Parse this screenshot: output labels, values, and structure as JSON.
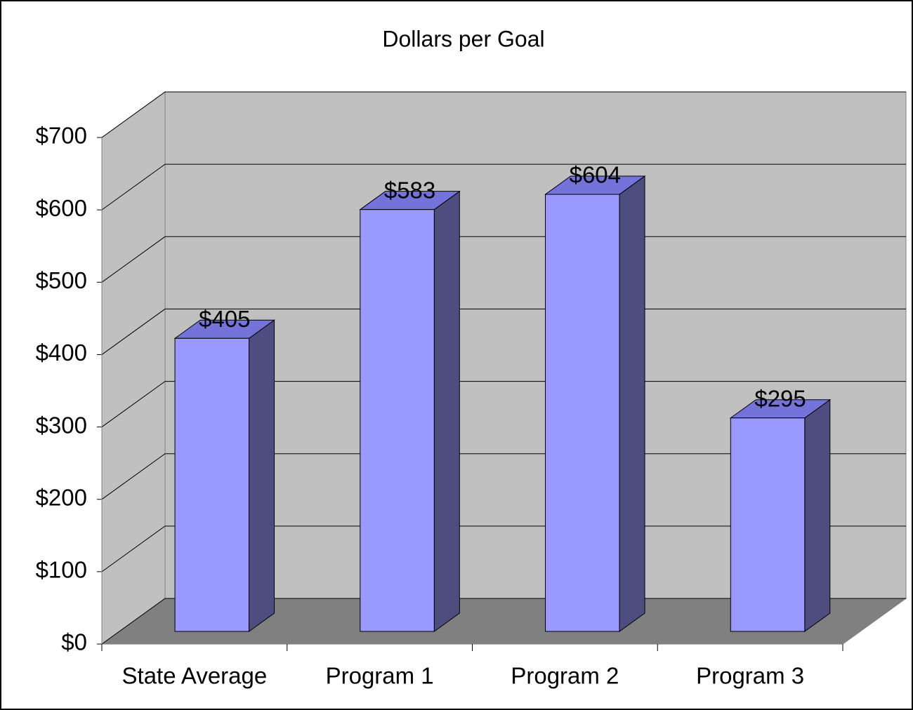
{
  "chart_data": {
    "type": "bar3d",
    "title": "Dollars per Goal",
    "categories": [
      "State Average",
      "Program 1",
      "Program 2",
      "Program 3"
    ],
    "values": [
      405,
      583,
      604,
      295
    ],
    "value_labels": [
      "$405",
      "$583",
      "$604",
      "$295"
    ],
    "color": "#9999ff",
    "ylim": [
      0,
      700
    ],
    "yticks": [
      {
        "value": 0,
        "label": "$0"
      },
      {
        "value": 100,
        "label": "$100"
      },
      {
        "value": 200,
        "label": "$200"
      },
      {
        "value": 300,
        "label": "$300"
      },
      {
        "value": 400,
        "label": "$400"
      },
      {
        "value": 500,
        "label": "$500"
      },
      {
        "value": 600,
        "label": "$600"
      },
      {
        "value": 700,
        "label": "$700"
      }
    ],
    "grid": true
  }
}
